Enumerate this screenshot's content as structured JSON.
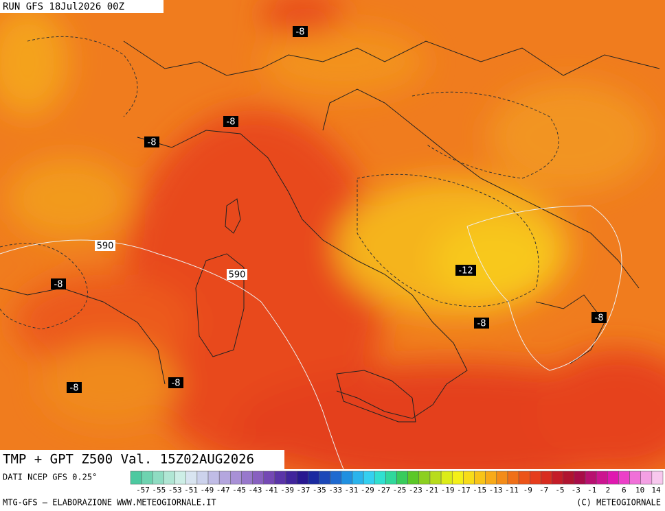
{
  "header": {
    "run": "RUN GFS 18Jul2026 00Z"
  },
  "map": {
    "contour_labels": [
      "-8",
      "-8",
      "-8",
      "590",
      "590",
      "-8",
      "-12",
      "-8",
      "-8",
      "-8",
      "-8"
    ]
  },
  "footer": {
    "product": "TMP + GPT Z500 Val. 15Z02AUG2026",
    "source": "DATI NCEP GFS 0.25°",
    "credit": "MTG-GFS – ELABORAZIONE WWW.METEOGIORNALE.IT",
    "copyright": "(C) METEOGIORNALE"
  },
  "colorbar": {
    "colors": [
      "#4cc9a0",
      "#6ed3b0",
      "#8fdcc2",
      "#b0e6d4",
      "#cdeee6",
      "#d8e4f0",
      "#ccd2ec",
      "#c0bce6",
      "#b4a6de",
      "#a890d6",
      "#9878cc",
      "#8860c0",
      "#7448b4",
      "#5a34a8",
      "#40249c",
      "#281890",
      "#1a2aa0",
      "#1c48b8",
      "#1e6ad0",
      "#2090e0",
      "#2ab4ec",
      "#34d0f0",
      "#30e0d0",
      "#30d89c",
      "#38cc5c",
      "#5cc828",
      "#8cd020",
      "#b8dc1c",
      "#dcec18",
      "#f4f018",
      "#f8dc18",
      "#f8c418",
      "#f8aa18",
      "#f48c18",
      "#f07018",
      "#ec5418",
      "#e63c1c",
      "#d82c20",
      "#c41c28",
      "#b01430",
      "#a80c48",
      "#b81070",
      "#cc1490",
      "#e018b0",
      "#ec40c8",
      "#f070d8",
      "#f4a0e4",
      "#f8c8ee"
    ],
    "labels": [
      "-57",
      "-55",
      "-53",
      "-51",
      "-49",
      "-47",
      "-45",
      "-43",
      "-41",
      "-39",
      "-37",
      "-35",
      "-33",
      "-31",
      "-29",
      "-27",
      "-25",
      "-23",
      "-21",
      "-19",
      "-17",
      "-15",
      "-13",
      "-11",
      "-9",
      "-7",
      "-5",
      "-3",
      "-1",
      "2",
      "6",
      "10",
      "14"
    ]
  }
}
